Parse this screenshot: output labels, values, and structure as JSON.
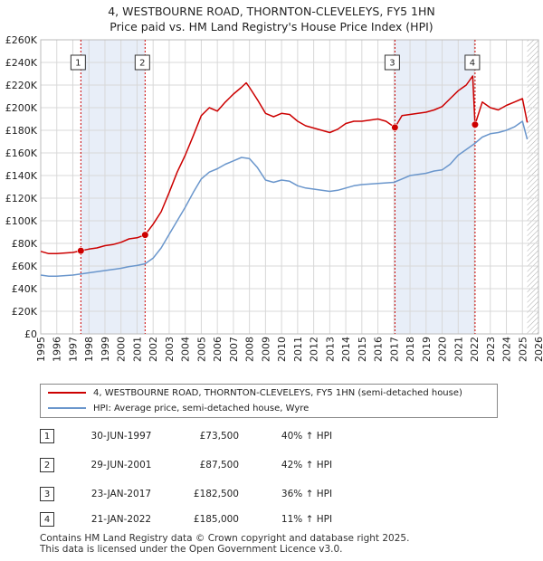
{
  "title_line1": "4, WESTBOURNE ROAD, THORNTON-CLEVELEYS, FY5 1HN",
  "title_line2": "Price paid vs. HM Land Registry's House Price Index (HPI)",
  "legend": {
    "property": "4, WESTBOURNE ROAD, THORNTON-CLEVELEYS, FY5 1HN (semi-detached house)",
    "hpi": "HPI: Average price, semi-detached house, Wyre"
  },
  "sales": [
    {
      "num": "1",
      "date": "30-JUN-1997",
      "price": "£73,500",
      "hpi": "40% ↑ HPI"
    },
    {
      "num": "2",
      "date": "29-JUN-2001",
      "price": "£87,500",
      "hpi": "42% ↑ HPI"
    },
    {
      "num": "3",
      "date": "23-JAN-2017",
      "price": "£182,500",
      "hpi": "36% ↑ HPI"
    },
    {
      "num": "4",
      "date": "21-JAN-2022",
      "price": "£185,000",
      "hpi": "11% ↑ HPI"
    }
  ],
  "footer_line1": "Contains HM Land Registry data © Crown copyright and database right 2025.",
  "footer_line2": "This data is licensed under the Open Government Licence v3.0.",
  "colors": {
    "property": "#cc0000",
    "hpi": "#6a96cc",
    "shade": "#e8eef8",
    "grid": "#d8d8d8"
  },
  "chart_data": {
    "type": "line",
    "title": "4, WESTBOURNE ROAD, THORNTON-CLEVELEYS, FY5 1HN — Price paid vs. HM Land Registry's House Price Index (HPI)",
    "xlabel": "",
    "ylabel": "",
    "xlim": [
      1995,
      2026
    ],
    "ylim": [
      0,
      260000
    ],
    "y_ticks": [
      0,
      20000,
      40000,
      60000,
      80000,
      100000,
      120000,
      140000,
      160000,
      180000,
      200000,
      220000,
      240000,
      260000
    ],
    "y_tick_labels": [
      "£0",
      "£20K",
      "£40K",
      "£60K",
      "£80K",
      "£100K",
      "£120K",
      "£140K",
      "£160K",
      "£180K",
      "£200K",
      "£220K",
      "£240K",
      "£260K"
    ],
    "x_ticks": [
      1995,
      1996,
      1997,
      1998,
      1999,
      2000,
      2001,
      2002,
      2003,
      2004,
      2005,
      2006,
      2007,
      2008,
      2009,
      2010,
      2011,
      2012,
      2013,
      2014,
      2015,
      2016,
      2017,
      2018,
      2019,
      2020,
      2021,
      2022,
      2023,
      2024,
      2025,
      2026
    ],
    "shaded_periods": [
      [
        1997.5,
        2001.5
      ],
      [
        2017.06,
        2022.05
      ]
    ],
    "sale_markers": [
      {
        "label": "1",
        "x": 1997.5,
        "y": 73500
      },
      {
        "label": "2",
        "x": 2001.5,
        "y": 87500
      },
      {
        "label": "3",
        "x": 2017.06,
        "y": 182500
      },
      {
        "label": "4",
        "x": 2022.05,
        "y": 185000
      }
    ],
    "future_hatch_from": 2025.3,
    "series": [
      {
        "name": "4, WESTBOURNE ROAD, THORNTON-CLEVELEYS, FY5 1HN (semi-detached house)",
        "color": "#cc0000",
        "points": [
          [
            1995.0,
            73000
          ],
          [
            1995.5,
            71000
          ],
          [
            1996.0,
            71000
          ],
          [
            1996.5,
            71500
          ],
          [
            1997.0,
            72000
          ],
          [
            1997.5,
            73500
          ],
          [
            1998.0,
            75000
          ],
          [
            1998.5,
            76000
          ],
          [
            1999.0,
            78000
          ],
          [
            1999.5,
            79000
          ],
          [
            2000.0,
            81000
          ],
          [
            2000.5,
            84000
          ],
          [
            2001.0,
            85000
          ],
          [
            2001.5,
            87500
          ],
          [
            2002.0,
            97000
          ],
          [
            2002.5,
            108000
          ],
          [
            2003.0,
            125000
          ],
          [
            2003.5,
            143000
          ],
          [
            2004.0,
            158000
          ],
          [
            2004.5,
            175000
          ],
          [
            2005.0,
            193000
          ],
          [
            2005.5,
            200000
          ],
          [
            2006.0,
            197000
          ],
          [
            2006.5,
            205000
          ],
          [
            2007.0,
            212000
          ],
          [
            2007.5,
            218000
          ],
          [
            2007.8,
            222000
          ],
          [
            2008.0,
            218000
          ],
          [
            2008.5,
            207000
          ],
          [
            2009.0,
            195000
          ],
          [
            2009.5,
            192000
          ],
          [
            2010.0,
            195000
          ],
          [
            2010.5,
            194000
          ],
          [
            2011.0,
            188000
          ],
          [
            2011.5,
            184000
          ],
          [
            2012.0,
            182000
          ],
          [
            2012.5,
            180000
          ],
          [
            2013.0,
            178000
          ],
          [
            2013.5,
            181000
          ],
          [
            2014.0,
            186000
          ],
          [
            2014.5,
            188000
          ],
          [
            2015.0,
            188000
          ],
          [
            2015.5,
            189000
          ],
          [
            2016.0,
            190000
          ],
          [
            2016.5,
            188000
          ],
          [
            2017.06,
            182500
          ],
          [
            2017.5,
            193000
          ],
          [
            2018.0,
            194000
          ],
          [
            2018.5,
            195000
          ],
          [
            2019.0,
            196000
          ],
          [
            2019.5,
            198000
          ],
          [
            2020.0,
            201000
          ],
          [
            2020.5,
            208000
          ],
          [
            2021.0,
            215000
          ],
          [
            2021.5,
            220000
          ],
          [
            2021.9,
            228000
          ],
          [
            2022.05,
            185000
          ],
          [
            2022.5,
            205000
          ],
          [
            2023.0,
            200000
          ],
          [
            2023.5,
            198000
          ],
          [
            2024.0,
            202000
          ],
          [
            2024.5,
            205000
          ],
          [
            2025.0,
            208000
          ],
          [
            2025.3,
            187000
          ]
        ]
      },
      {
        "name": "HPI: Average price, semi-detached house, Wyre",
        "color": "#6a96cc",
        "points": [
          [
            1995.0,
            52000
          ],
          [
            1995.5,
            51000
          ],
          [
            1996.0,
            51000
          ],
          [
            1996.5,
            51500
          ],
          [
            1997.0,
            52000
          ],
          [
            1997.5,
            53000
          ],
          [
            1998.0,
            54000
          ],
          [
            1998.5,
            55000
          ],
          [
            1999.0,
            56000
          ],
          [
            1999.5,
            57000
          ],
          [
            2000.0,
            58000
          ],
          [
            2000.5,
            59500
          ],
          [
            2001.0,
            60500
          ],
          [
            2001.5,
            62000
          ],
          [
            2002.0,
            67000
          ],
          [
            2002.5,
            76000
          ],
          [
            2003.0,
            88000
          ],
          [
            2003.5,
            100000
          ],
          [
            2004.0,
            112000
          ],
          [
            2004.5,
            125000
          ],
          [
            2005.0,
            137000
          ],
          [
            2005.5,
            143000
          ],
          [
            2006.0,
            146000
          ],
          [
            2006.5,
            150000
          ],
          [
            2007.0,
            153000
          ],
          [
            2007.5,
            156000
          ],
          [
            2008.0,
            155000
          ],
          [
            2008.5,
            147000
          ],
          [
            2009.0,
            136000
          ],
          [
            2009.5,
            134000
          ],
          [
            2010.0,
            136000
          ],
          [
            2010.5,
            135000
          ],
          [
            2011.0,
            131000
          ],
          [
            2011.5,
            129000
          ],
          [
            2012.0,
            128000
          ],
          [
            2012.5,
            127000
          ],
          [
            2013.0,
            126000
          ],
          [
            2013.5,
            127000
          ],
          [
            2014.0,
            129000
          ],
          [
            2014.5,
            131000
          ],
          [
            2015.0,
            132000
          ],
          [
            2015.5,
            132500
          ],
          [
            2016.0,
            133000
          ],
          [
            2016.5,
            133500
          ],
          [
            2017.0,
            134000
          ],
          [
            2017.5,
            137000
          ],
          [
            2018.0,
            140000
          ],
          [
            2018.5,
            141000
          ],
          [
            2019.0,
            142000
          ],
          [
            2019.5,
            144000
          ],
          [
            2020.0,
            145000
          ],
          [
            2020.5,
            150000
          ],
          [
            2021.0,
            158000
          ],
          [
            2021.5,
            163000
          ],
          [
            2022.0,
            168000
          ],
          [
            2022.5,
            174000
          ],
          [
            2023.0,
            177000
          ],
          [
            2023.5,
            178000
          ],
          [
            2024.0,
            180000
          ],
          [
            2024.5,
            183000
          ],
          [
            2025.0,
            188000
          ],
          [
            2025.3,
            172000
          ]
        ]
      }
    ]
  }
}
